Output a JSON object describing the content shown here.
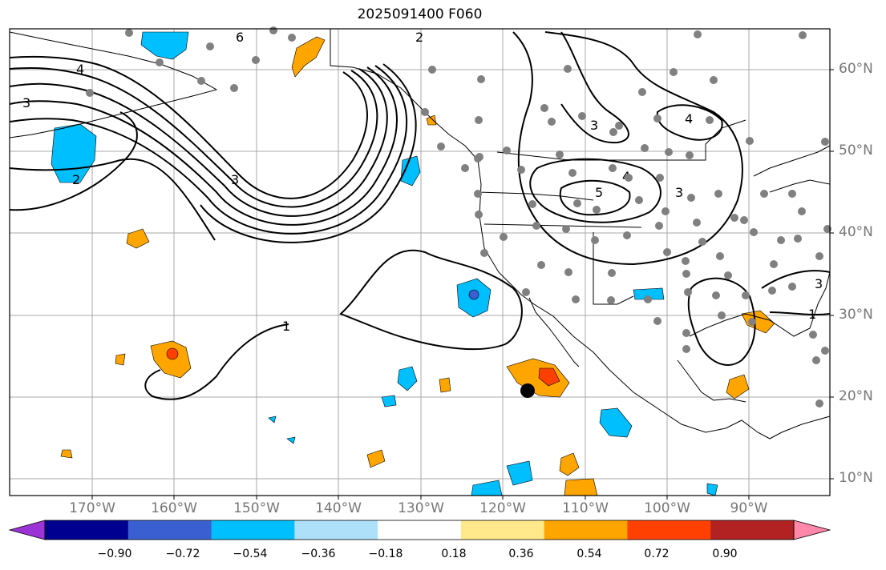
{
  "title": "2025091400 F060",
  "lat_labels": [
    "60°N",
    "50°N",
    "40°N",
    "30°N",
    "20°N",
    "10°N"
  ],
  "lon_labels": [
    "170°W",
    "160°W",
    "150°W",
    "140°W",
    "130°W",
    "120°W",
    "110°W",
    "100°W",
    "90°W"
  ],
  "contour_labels": [
    "1",
    "2",
    "3",
    "4",
    "5",
    "6"
  ],
  "colorbar": {
    "tick_labels": [
      "−0.90",
      "−0.72",
      "−0.54",
      "−0.36",
      "−0.18",
      "0.18",
      "0.36",
      "0.54",
      "0.72",
      "0.90"
    ],
    "colors": [
      "#9b33d6",
      "#000090",
      "#3a5fd0",
      "#00bfff",
      "#aee0fa",
      "#ffffff",
      "#ffe98a",
      "#ffa500",
      "#ff4000",
      "#b22222",
      "#ff88aa"
    ]
  },
  "colors": {
    "station_dot": "#808080",
    "marker": "#000000",
    "grid": "#a0a0a0",
    "contour": "#000000"
  }
}
